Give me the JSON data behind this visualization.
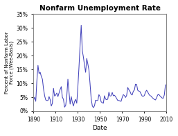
{
  "title": "Nonfarm Unemployment Rate",
  "xlabel": "Date",
  "ylabel": "Percent of Nonfarm Labor\nForce (Wee-Basis)",
  "xlim": [
    1890,
    2010
  ],
  "ylim": [
    0,
    0.35
  ],
  "yticks": [
    0.0,
    0.05,
    0.1,
    0.15,
    0.2,
    0.25,
    0.3,
    0.35
  ],
  "ytick_labels": [
    "0%",
    "5%",
    "10%",
    "15%",
    "20%",
    "25%",
    "30%",
    "35%"
  ],
  "xticks": [
    1890,
    1910,
    1930,
    1950,
    1970,
    1990,
    2010
  ],
  "line_color": "#4444bb",
  "background_color": "#ffffff",
  "data": [
    [
      1890,
      0.04
    ],
    [
      1891,
      0.05
    ],
    [
      1892,
      0.035
    ],
    [
      1893,
      0.11
    ],
    [
      1894,
      0.165
    ],
    [
      1895,
      0.135
    ],
    [
      1896,
      0.14
    ],
    [
      1897,
      0.125
    ],
    [
      1898,
      0.115
    ],
    [
      1899,
      0.08
    ],
    [
      1900,
      0.055
    ],
    [
      1901,
      0.04
    ],
    [
      1902,
      0.038
    ],
    [
      1903,
      0.038
    ],
    [
      1904,
      0.052
    ],
    [
      1905,
      0.041
    ],
    [
      1906,
      0.018
    ],
    [
      1907,
      0.028
    ],
    [
      1908,
      0.082
    ],
    [
      1909,
      0.054
    ],
    [
      1910,
      0.058
    ],
    [
      1911,
      0.065
    ],
    [
      1912,
      0.052
    ],
    [
      1913,
      0.065
    ],
    [
      1914,
      0.078
    ],
    [
      1915,
      0.088
    ],
    [
      1916,
      0.05
    ],
    [
      1917,
      0.042
    ],
    [
      1918,
      0.014
    ],
    [
      1919,
      0.02
    ],
    [
      1920,
      0.054
    ],
    [
      1921,
      0.115
    ],
    [
      1922,
      0.068
    ],
    [
      1923,
      0.025
    ],
    [
      1924,
      0.052
    ],
    [
      1925,
      0.032
    ],
    [
      1926,
      0.018
    ],
    [
      1927,
      0.034
    ],
    [
      1928,
      0.042
    ],
    [
      1929,
      0.028
    ],
    [
      1930,
      0.088
    ],
    [
      1931,
      0.159
    ],
    [
      1932,
      0.238
    ],
    [
      1933,
      0.31
    ],
    [
      1934,
      0.218
    ],
    [
      1935,
      0.195
    ],
    [
      1936,
      0.165
    ],
    [
      1937,
      0.14
    ],
    [
      1938,
      0.19
    ],
    [
      1939,
      0.17
    ],
    [
      1940,
      0.148
    ],
    [
      1941,
      0.098
    ],
    [
      1942,
      0.045
    ],
    [
      1943,
      0.019
    ],
    [
      1944,
      0.012
    ],
    [
      1945,
      0.019
    ],
    [
      1946,
      0.039
    ],
    [
      1947,
      0.038
    ],
    [
      1948,
      0.038
    ],
    [
      1949,
      0.059
    ],
    [
      1950,
      0.052
    ],
    [
      1951,
      0.033
    ],
    [
      1952,
      0.03
    ],
    [
      1953,
      0.028
    ],
    [
      1954,
      0.055
    ],
    [
      1955,
      0.043
    ],
    [
      1956,
      0.041
    ],
    [
      1957,
      0.043
    ],
    [
      1958,
      0.068
    ],
    [
      1959,
      0.054
    ],
    [
      1960,
      0.055
    ],
    [
      1961,
      0.067
    ],
    [
      1962,
      0.055
    ],
    [
      1963,
      0.057
    ],
    [
      1964,
      0.052
    ],
    [
      1965,
      0.045
    ],
    [
      1966,
      0.038
    ],
    [
      1967,
      0.038
    ],
    [
      1968,
      0.036
    ],
    [
      1969,
      0.035
    ],
    [
      1970,
      0.049
    ],
    [
      1971,
      0.059
    ],
    [
      1972,
      0.056
    ],
    [
      1973,
      0.049
    ],
    [
      1974,
      0.056
    ],
    [
      1975,
      0.085
    ],
    [
      1976,
      0.077
    ],
    [
      1977,
      0.071
    ],
    [
      1978,
      0.061
    ],
    [
      1979,
      0.058
    ],
    [
      1980,
      0.071
    ],
    [
      1981,
      0.076
    ],
    [
      1982,
      0.097
    ],
    [
      1983,
      0.096
    ],
    [
      1984,
      0.075
    ],
    [
      1985,
      0.072
    ],
    [
      1986,
      0.07
    ],
    [
      1987,
      0.062
    ],
    [
      1988,
      0.054
    ],
    [
      1989,
      0.053
    ],
    [
      1990,
      0.056
    ],
    [
      1991,
      0.068
    ],
    [
      1992,
      0.075
    ],
    [
      1993,
      0.069
    ],
    [
      1994,
      0.061
    ],
    [
      1995,
      0.056
    ],
    [
      1996,
      0.054
    ],
    [
      1997,
      0.049
    ],
    [
      1998,
      0.045
    ],
    [
      1999,
      0.042
    ],
    [
      2000,
      0.04
    ],
    [
      2001,
      0.047
    ],
    [
      2002,
      0.058
    ],
    [
      2003,
      0.06
    ],
    [
      2004,
      0.055
    ],
    [
      2005,
      0.051
    ],
    [
      2006,
      0.047
    ],
    [
      2007,
      0.046
    ],
    [
      2008,
      0.058
    ],
    [
      2009,
      0.093
    ],
    [
      2010,
      0.096
    ]
  ]
}
